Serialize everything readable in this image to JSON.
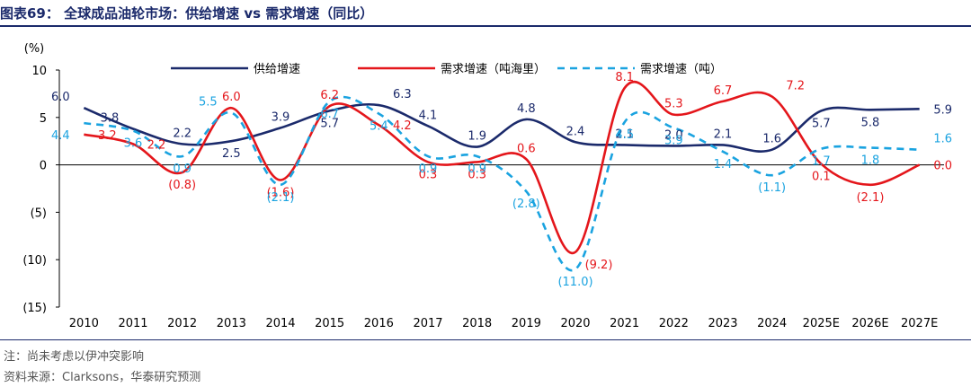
{
  "header": {
    "title": "图表69：  全球成品油轮市场：供给增速 vs 需求增速（同比）"
  },
  "footer": {
    "note": "注：尚未考虑以伊冲突影响",
    "source": "资料来源：Clarksons，华泰研究预测"
  },
  "chart_data": {
    "type": "line",
    "ylabel": "(%)",
    "ylim": [
      -15,
      10
    ],
    "yticks": [
      10,
      5,
      0,
      -5,
      -10,
      -15
    ],
    "ytick_labels": [
      "10",
      "5",
      "0",
      "(5)",
      "(10)",
      "(15)"
    ],
    "categories": [
      "2010",
      "2011",
      "2012",
      "2013",
      "2014",
      "2015",
      "2016",
      "2017",
      "2018",
      "2019",
      "2020",
      "2021",
      "2022",
      "2023",
      "2024",
      "2025E",
      "2026E",
      "2027E"
    ],
    "legend_position": "top",
    "grid": false,
    "series": [
      {
        "name": "供给增速",
        "color": "#1b2a6b",
        "dash": "solid",
        "values": [
          6.0,
          3.8,
          2.2,
          2.5,
          3.9,
          5.7,
          6.3,
          4.1,
          1.9,
          4.8,
          2.4,
          2.1,
          2.0,
          2.1,
          1.6,
          5.7,
          5.8,
          5.9
        ],
        "labels": [
          "6.0",
          "3.8",
          "2.2",
          "2.5",
          "3.9",
          "5.7",
          "6.3",
          "4.1",
          "1.9",
          "4.8",
          "2.4",
          "2.1",
          "2.0",
          "2.1",
          "1.6",
          "5.7",
          "5.8",
          "5.9"
        ]
      },
      {
        "name": "需求增速（吨海里）",
        "color": "#e4161b",
        "dash": "solid",
        "values": [
          3.2,
          2.2,
          -0.8,
          6.0,
          -1.6,
          6.2,
          4.2,
          0.3,
          0.3,
          0.6,
          -9.2,
          8.1,
          5.3,
          6.7,
          7.2,
          0.1,
          -2.1,
          0.0
        ],
        "labels": [
          "3.2",
          "2.2",
          "(0.8)",
          "6.0",
          "(1.6)",
          "6.2",
          "4.2",
          "0.3",
          "0.3",
          "0.6",
          "(9.2)",
          "8.1",
          "5.3",
          "6.7",
          "7.2",
          "0.1",
          "(2.1)",
          "0.0"
        ]
      },
      {
        "name": "需求增速（吨）",
        "color": "#1aa3e0",
        "dash": "dashed",
        "values": [
          4.4,
          3.6,
          0.9,
          5.5,
          -2.1,
          6.7,
          5.4,
          0.9,
          0.9,
          -2.8,
          -11.0,
          4.5,
          3.9,
          1.4,
          -1.1,
          1.7,
          1.8,
          1.6
        ],
        "labels": [
          "4.4",
          "3.6",
          "0.9",
          "5.5",
          "(2.1)",
          "6.7",
          "5.4",
          "0.9",
          "0.9",
          "(2.8)",
          "(11.0)",
          "4.5",
          "3.9",
          "1.4",
          "(1.1)",
          "1.7",
          "1.8",
          "1.6"
        ]
      }
    ]
  }
}
